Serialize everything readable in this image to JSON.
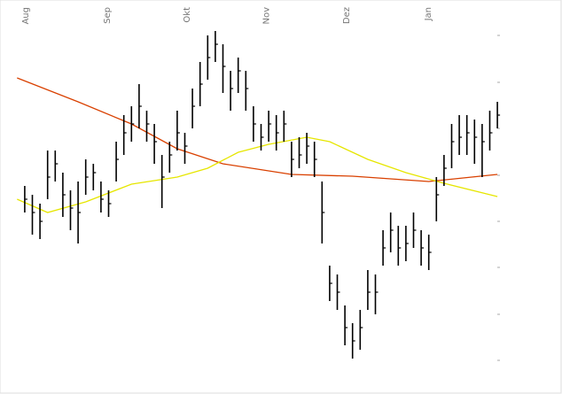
{
  "chart_data": {
    "type": "ohlc",
    "x": [
      0,
      1,
      2,
      3,
      4,
      5,
      6,
      7,
      8,
      9,
      10,
      11,
      12,
      13,
      14,
      15,
      16,
      17,
      18,
      19,
      20,
      21,
      22,
      23,
      24,
      25,
      26,
      27,
      28,
      29,
      30,
      31,
      32,
      33,
      34,
      35,
      36,
      37,
      38,
      39,
      40,
      41,
      42,
      43,
      44,
      45,
      46,
      47,
      48,
      49,
      50,
      51,
      52,
      53,
      54,
      55,
      56,
      57,
      58,
      59,
      60,
      61,
      62
    ],
    "close": [
      220,
      205,
      195,
      245,
      260,
      225,
      210,
      205,
      245,
      250,
      220,
      215,
      265,
      295,
      305,
      325,
      305,
      285,
      245,
      270,
      295,
      280,
      325,
      350,
      380,
      395,
      370,
      345,
      365,
      345,
      305,
      290,
      305,
      295,
      305,
      265,
      270,
      280,
      265,
      205,
      125,
      115,
      75,
      60,
      75,
      115,
      115,
      165,
      185,
      165,
      170,
      185,
      165,
      160,
      225,
      255,
      285,
      290,
      295,
      290,
      285,
      295,
      315
    ],
    "high": [
      235,
      225,
      215,
      275,
      275,
      250,
      230,
      240,
      265,
      260,
      240,
      230,
      285,
      315,
      325,
      350,
      320,
      305,
      270,
      285,
      320,
      295,
      345,
      375,
      405,
      410,
      395,
      365,
      380,
      365,
      325,
      305,
      320,
      315,
      320,
      285,
      290,
      295,
      285,
      240,
      145,
      135,
      100,
      80,
      95,
      140,
      135,
      185,
      205,
      190,
      190,
      205,
      185,
      180,
      245,
      270,
      305,
      315,
      315,
      310,
      305,
      320,
      330
    ],
    "low": [
      205,
      180,
      175,
      220,
      240,
      200,
      185,
      170,
      225,
      230,
      205,
      200,
      240,
      270,
      285,
      300,
      285,
      260,
      210,
      250,
      275,
      260,
      300,
      325,
      355,
      375,
      340,
      320,
      340,
      320,
      285,
      275,
      285,
      275,
      285,
      245,
      255,
      260,
      245,
      170,
      105,
      95,
      55,
      40,
      50,
      95,
      90,
      145,
      160,
      145,
      150,
      165,
      145,
      140,
      195,
      235,
      255,
      270,
      270,
      260,
      245,
      275,
      300
    ],
    "ma_lines": [
      {
        "color": "#d94000",
        "x": [
          -1,
          7,
          14,
          20,
          26,
          35,
          43,
          53,
          62
        ],
        "values": [
          357,
          330,
          305,
          277,
          260,
          248,
          246,
          240,
          248
        ]
      },
      {
        "color": "#e6e600",
        "x": [
          -1,
          3,
          8,
          14,
          20,
          24,
          28,
          32,
          37,
          40,
          45,
          50,
          55,
          62
        ],
        "values": [
          220,
          205,
          217,
          237,
          245,
          255,
          273,
          282,
          290,
          285,
          265,
          250,
          238,
          223
        ]
      }
    ],
    "bar_color": "#000000",
    "xticks": [
      {
        "value": 0,
        "label": "Aug"
      },
      {
        "value": 10.7,
        "label": "Sep"
      },
      {
        "value": 21.2,
        "label": "Okt"
      },
      {
        "value": 31.6,
        "label": "Nov"
      },
      {
        "value": 42.1,
        "label": "Dez"
      },
      {
        "value": 52.8,
        "label": "Jan"
      }
    ],
    "xlim": [
      -1.5,
      63.5
    ],
    "ylim": [
      0,
      445
    ]
  }
}
